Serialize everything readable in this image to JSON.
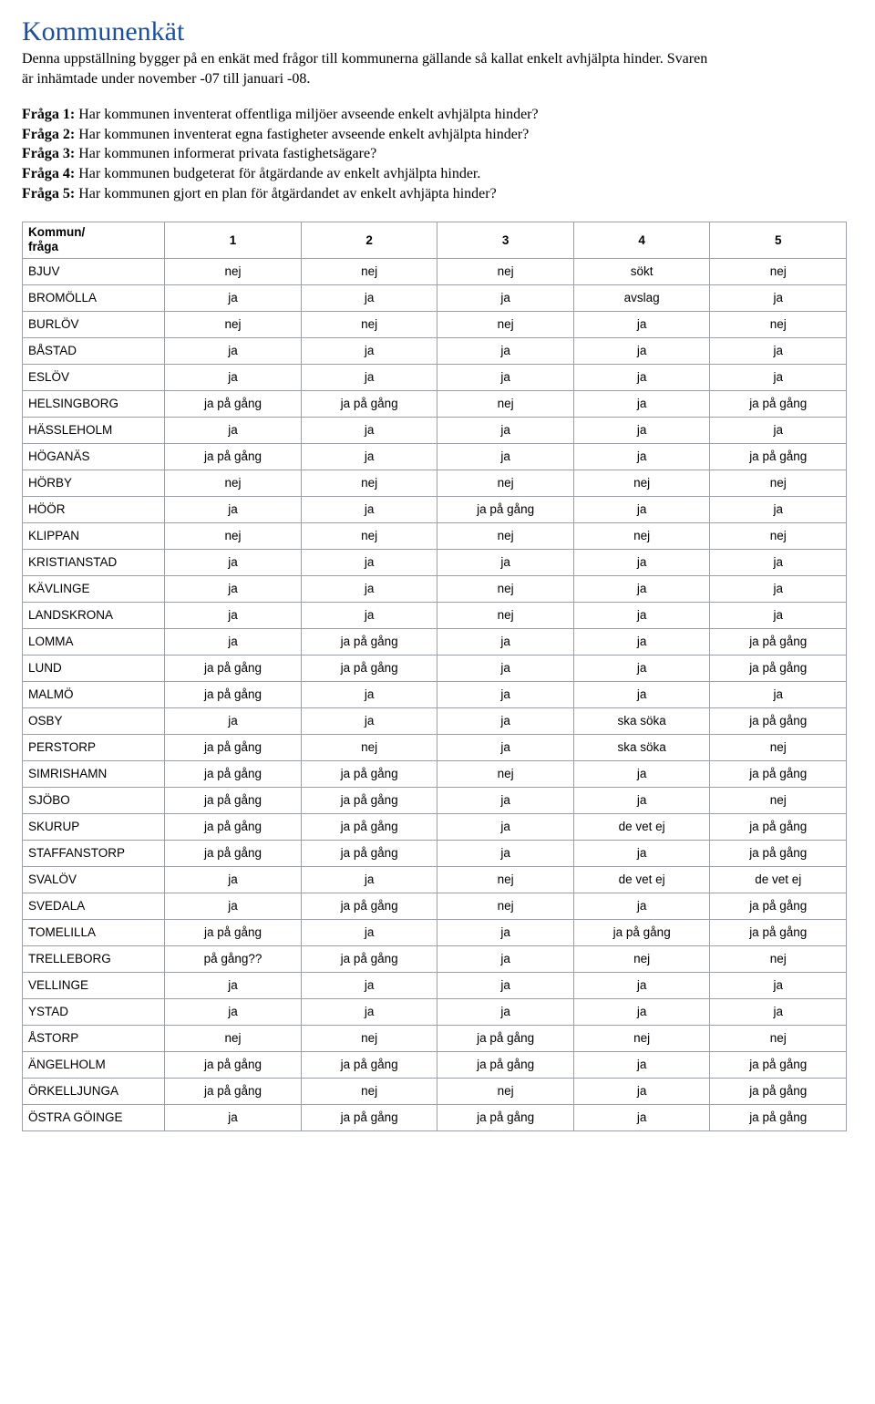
{
  "title": "Kommunenkät",
  "intro": "Denna uppställning bygger på en enkät med frågor till kommunerna gällande så kallat enkelt avhjälpta hinder. Svaren är inhämtade under november -07 till januari -08.",
  "questions": [
    {
      "label": "Fråga 1:",
      "text": " Har kommunen inventerat offentliga miljöer avseende enkelt avhjälpta hinder?"
    },
    {
      "label": "Fråga 2:",
      "text": " Har kommunen inventerat egna fastigheter avseende enkelt avhjälpta hinder?"
    },
    {
      "label": "Fråga 3:",
      "text": " Har kommunen informerat privata fastighetsägare?"
    },
    {
      "label": "Fråga 4:",
      "text": " Har kommunen budgeterat för åtgärdande av enkelt avhjälpta hinder."
    },
    {
      "label": "Fråga 5:",
      "text": " Har kommunen gjort en plan för åtgärdandet av enkelt avhjäpta hinder?"
    }
  ],
  "table": {
    "header_kommun_line1": "Kommun/",
    "header_kommun_line2": "fråga",
    "columns": [
      "1",
      "2",
      "3",
      "4",
      "5"
    ],
    "rows": [
      {
        "k": "BJUV",
        "v": [
          "nej",
          "nej",
          "nej",
          "sökt",
          "nej"
        ]
      },
      {
        "k": "BROMÖLLA",
        "v": [
          "ja",
          "ja",
          "ja",
          "avslag",
          "ja"
        ]
      },
      {
        "k": "BURLÖV",
        "v": [
          "nej",
          "nej",
          "nej",
          "ja",
          "nej"
        ]
      },
      {
        "k": "BÅSTAD",
        "v": [
          "ja",
          "ja",
          "ja",
          "ja",
          "ja"
        ]
      },
      {
        "k": "ESLÖV",
        "v": [
          "ja",
          "ja",
          "ja",
          "ja",
          "ja"
        ]
      },
      {
        "k": "HELSINGBORG",
        "v": [
          "ja på gång",
          "ja på gång",
          "nej",
          "ja",
          "ja på gång"
        ]
      },
      {
        "k": "HÄSSLEHOLM",
        "v": [
          "ja",
          "ja",
          "ja",
          "ja",
          "ja"
        ]
      },
      {
        "k": "HÖGANÄS",
        "v": [
          "ja på gång",
          "ja",
          "ja",
          "ja",
          "ja på gång"
        ]
      },
      {
        "k": "HÖRBY",
        "v": [
          "nej",
          "nej",
          "nej",
          "nej",
          "nej"
        ]
      },
      {
        "k": "HÖÖR",
        "v": [
          "ja",
          "ja",
          "ja på gång",
          "ja",
          "ja"
        ]
      },
      {
        "k": "KLIPPAN",
        "v": [
          "nej",
          "nej",
          "nej",
          "nej",
          "nej"
        ]
      },
      {
        "k": "KRISTIANSTAD",
        "v": [
          "ja",
          "ja",
          "ja",
          "ja",
          "ja"
        ]
      },
      {
        "k": "KÄVLINGE",
        "v": [
          "ja",
          "ja",
          "nej",
          "ja",
          "ja"
        ]
      },
      {
        "k": "LANDSKRONA",
        "v": [
          "ja",
          "ja",
          "nej",
          "ja",
          "ja"
        ]
      },
      {
        "k": "LOMMA",
        "v": [
          "ja",
          "ja på gång",
          "ja",
          "ja",
          "ja på gång"
        ]
      },
      {
        "k": "LUND",
        "v": [
          "ja på gång",
          "ja på gång",
          "ja",
          "ja",
          "ja på gång"
        ]
      },
      {
        "k": "MALMÖ",
        "v": [
          "ja på gång",
          "ja",
          "ja",
          "ja",
          "ja"
        ]
      },
      {
        "k": "OSBY",
        "v": [
          "ja",
          "ja",
          "ja",
          "ska söka",
          "ja på gång"
        ]
      },
      {
        "k": "PERSTORP",
        "v": [
          "ja på gång",
          "nej",
          "ja",
          "ska söka",
          "nej"
        ]
      },
      {
        "k": "SIMRISHAMN",
        "v": [
          "ja på gång",
          "ja på gång",
          "nej",
          "ja",
          "ja på gång"
        ]
      },
      {
        "k": "SJÖBO",
        "v": [
          "ja på gång",
          "ja på gång",
          "ja",
          "ja",
          "nej"
        ]
      },
      {
        "k": "SKURUP",
        "v": [
          "ja på gång",
          "ja på gång",
          "ja",
          "de vet ej",
          "ja på gång"
        ]
      },
      {
        "k": "STAFFANSTORP",
        "v": [
          "ja på gång",
          "ja på gång",
          "ja",
          "ja",
          "ja på gång"
        ]
      },
      {
        "k": "SVALÖV",
        "v": [
          "ja",
          "ja",
          "nej",
          "de vet ej",
          "de vet ej"
        ]
      },
      {
        "k": "SVEDALA",
        "v": [
          "ja",
          "ja på gång",
          "nej",
          "ja",
          "ja på gång"
        ]
      },
      {
        "k": "TOMELILLA",
        "v": [
          "ja på gång",
          "ja",
          "ja",
          "ja på gång",
          "ja på gång"
        ]
      },
      {
        "k": "TRELLEBORG",
        "v": [
          "på gång??",
          "ja på gång",
          "ja",
          "nej",
          "nej"
        ]
      },
      {
        "k": "VELLINGE",
        "v": [
          "ja",
          "ja",
          "ja",
          "ja",
          "ja"
        ]
      },
      {
        "k": "YSTAD",
        "v": [
          "ja",
          "ja",
          "ja",
          "ja",
          "ja"
        ]
      },
      {
        "k": "ÅSTORP",
        "v": [
          "nej",
          "nej",
          "ja på gång",
          "nej",
          "nej"
        ]
      },
      {
        "k": "ÄNGELHOLM",
        "v": [
          "ja på gång",
          "ja på gång",
          "ja på gång",
          "ja",
          "ja på gång"
        ]
      },
      {
        "k": "ÖRKELLJUNGA",
        "v": [
          "ja på gång",
          "nej",
          "nej",
          "ja",
          "ja på gång"
        ]
      },
      {
        "k": "ÖSTRA GÖINGE",
        "v": [
          "ja",
          "ja på gång",
          "ja på gång",
          "ja",
          "ja på gång"
        ]
      }
    ]
  },
  "colors": {
    "title": "#1a4f9c",
    "text": "#000000",
    "border": "#9aa0a6",
    "background": "#ffffff"
  }
}
